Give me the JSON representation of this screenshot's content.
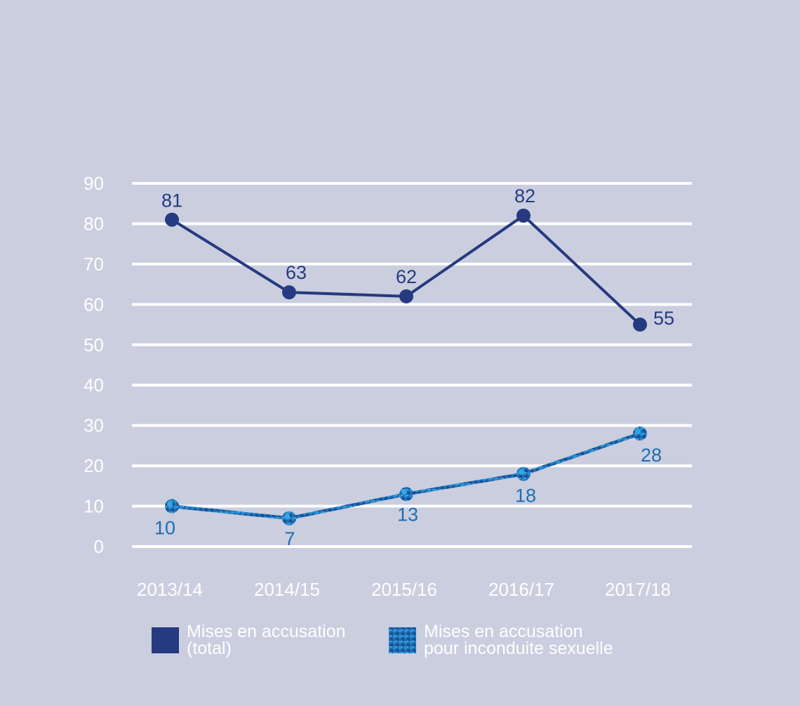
{
  "chart_data": {
    "type": "line",
    "title": "",
    "xlabel": "",
    "ylabel": "",
    "ylim": [
      0,
      90
    ],
    "yticks": [
      0,
      10,
      20,
      30,
      40,
      50,
      60,
      70,
      80,
      90
    ],
    "categories": [
      "2013/14",
      "2014/15",
      "2015/16",
      "2016/17",
      "2017/18"
    ],
    "grid": true,
    "legend_position": "bottom",
    "series": [
      {
        "name_lines": [
          "Mises en accusation",
          "(total)"
        ],
        "values": [
          81,
          63,
          62,
          82,
          55
        ],
        "color": "#253a80"
      },
      {
        "name_lines": [
          "Mises en accusation",
          "pour inconduite sexuelle"
        ],
        "values": [
          10,
          7,
          13,
          18,
          28
        ],
        "color": "#1f6db3",
        "accent_color": "#34a7e0"
      }
    ]
  },
  "colors": {
    "background": "#cacedf",
    "gridline": "#ffffff",
    "axis_text": "#ffffff"
  }
}
